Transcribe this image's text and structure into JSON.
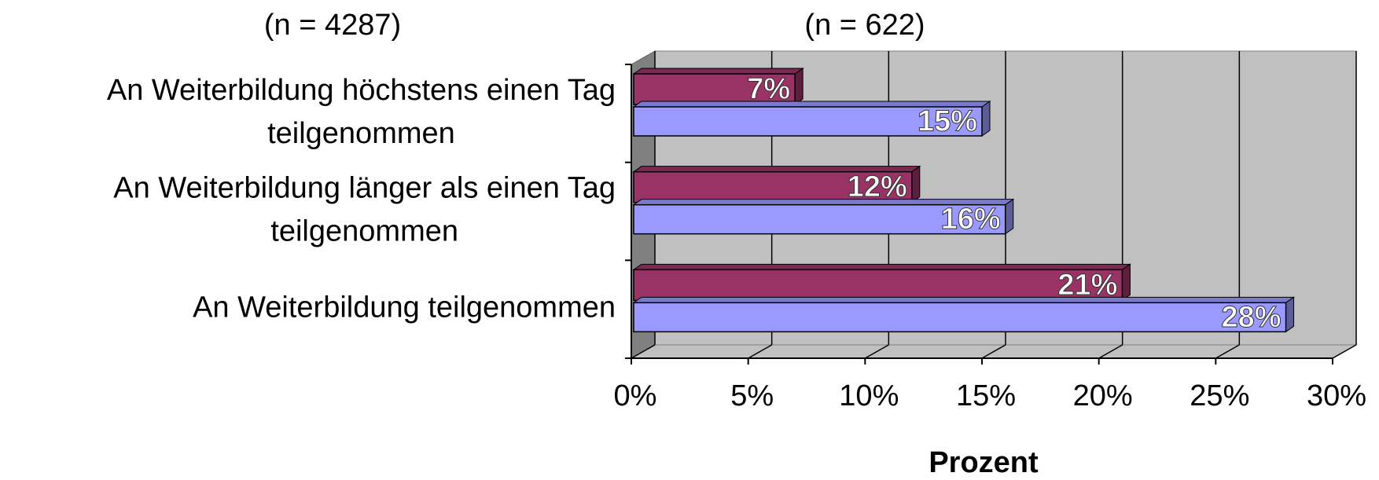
{
  "chart_data": {
    "type": "bar3d_horizontal",
    "annotations": [
      "(n = 4287)",
      "(n = 622)"
    ],
    "categories": [
      [
        "An  Weiterbildung höchstens einen Tag",
        "teilgenommen"
      ],
      [
        "An Weiterbildung länger als einen Tag",
        "teilgenommen"
      ],
      [
        "An Weiterbildung teilgenommen"
      ]
    ],
    "series": [
      {
        "color": "#993366",
        "values": [
          7,
          12,
          21
        ],
        "value_labels": [
          "7%",
          "12%",
          "21%"
        ]
      },
      {
        "color": "#9999ff",
        "values": [
          15,
          16,
          28
        ],
        "value_labels": [
          "15%",
          "16%",
          "28%"
        ]
      }
    ],
    "xlim": [
      0,
      30
    ],
    "xticks": [
      {
        "value": 0,
        "label": "0%"
      },
      {
        "value": 5,
        "label": "5%"
      },
      {
        "value": 10,
        "label": "10%"
      },
      {
        "value": 15,
        "label": "15%"
      },
      {
        "value": 20,
        "label": "20%"
      },
      {
        "value": 25,
        "label": "25%"
      },
      {
        "value": 30,
        "label": "30%"
      }
    ],
    "xlabel": "Prozent",
    "grid": true
  }
}
